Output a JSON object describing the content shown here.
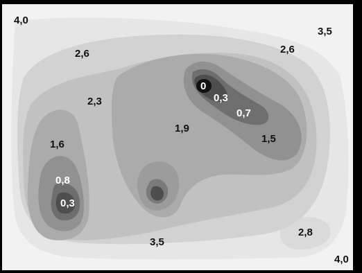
{
  "contour_map": {
    "labels": {
      "corner_top_left": "4,0",
      "top_right": "3,5",
      "upper_left": "2,6",
      "upper_right": "2,6",
      "left_mid": "2,3",
      "center": "1,9",
      "left_lobe_outer": "1,6",
      "left_lobe_mid": "0,8",
      "left_lobe_inner": "0,3",
      "right_peak_min": "0",
      "right_peak_inner": "0,3",
      "right_peak_mid": "0,7",
      "right_peak_outer": "1,5",
      "bottom_center": "3,5",
      "bottom_right_blob": "2,8",
      "corner_bottom_right": "4,0"
    },
    "colors": {
      "frame": "#000000",
      "background": "#f2f2f2",
      "level_1": "#e6e6e6",
      "level_2": "#d2d2d2",
      "level_3": "#c1c1c1",
      "level_4": "#ababab",
      "level_5": "#919191",
      "level_6": "#6e6e6e",
      "level_7": "#4e4e4e",
      "level_8": "#2a2a2a"
    }
  }
}
